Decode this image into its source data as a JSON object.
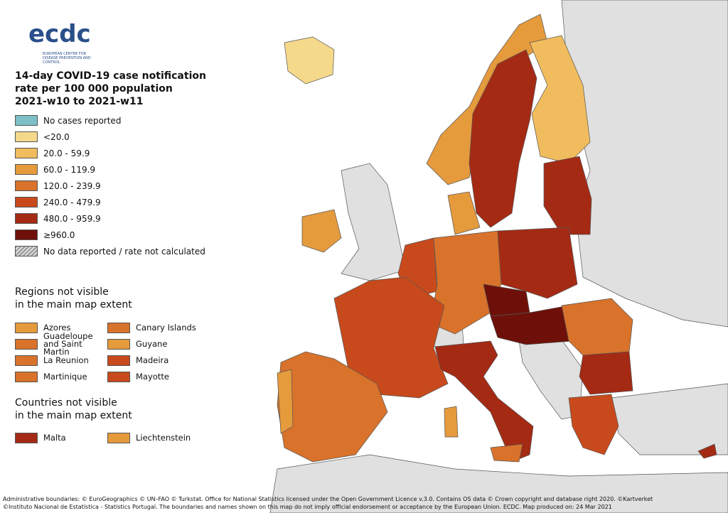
{
  "logo": {
    "name": "ecdc",
    "subtitle": "EUROPEAN CENTRE FOR DISEASE PREVENTION AND CONTROL"
  },
  "title": [
    "14-day COVID-19 case notification",
    "rate per 100 000 population",
    "2021-w10 to 2021-w11"
  ],
  "legend": [
    {
      "label": "No cases reported",
      "color": "#7dc0c8"
    },
    {
      "label": "<20.0",
      "color": "#f5d98a"
    },
    {
      "label": "20.0 - 59.9",
      "color": "#f0bc5e"
    },
    {
      "label": "60.0 - 119.9",
      "color": "#e59a3c"
    },
    {
      "label": "120.0 - 239.9",
      "color": "#d9722a"
    },
    {
      "label": "240.0 - 479.9",
      "color": "#c84a1c"
    },
    {
      "label": "480.0 - 959.9",
      "color": "#a52a14"
    },
    {
      "label": "≥960.0",
      "color": "#6e1009"
    },
    {
      "label": "No data reported / rate not calculated",
      "color": "hatch"
    }
  ],
  "regions": {
    "heading": [
      "Regions not visible",
      "in the main map extent"
    ],
    "items": [
      {
        "label": "Azores",
        "color": "#e59a3c"
      },
      {
        "label": "Canary Islands",
        "color": "#d9722a"
      },
      {
        "label": "Guadeloupe and Saint Martin",
        "color": "#d9722a"
      },
      {
        "label": "Guyane",
        "color": "#e59a3c"
      },
      {
        "label": "La Reunion",
        "color": "#d9722a"
      },
      {
        "label": "Madeira",
        "color": "#c84a1c"
      },
      {
        "label": "Martinique",
        "color": "#d9722a"
      },
      {
        "label": "Mayotte",
        "color": "#c84a1c"
      }
    ]
  },
  "countries": {
    "heading": [
      "Countries not visible",
      "in the main map extent"
    ],
    "items": [
      {
        "label": "Malta",
        "color": "#a52a14"
      },
      {
        "label": "Liechtenstein",
        "color": "#e59a3c"
      }
    ]
  },
  "footer": [
    "Administrative boundaries: © EuroGeographics © UN–FAO © Turkstat. Office for National Statistics licensed under the Open Government Licence v.3.0. Contains OS data © Crown copyright and database right 2020. ©Kartverket",
    "©Instituto Nacional de Estatística - Statistics Portugal. The boundaries and names shown on this map do not imply official endorsement or acceptance by the European Union. ECDC. Map produced on: 24 Mar 2021"
  ]
}
